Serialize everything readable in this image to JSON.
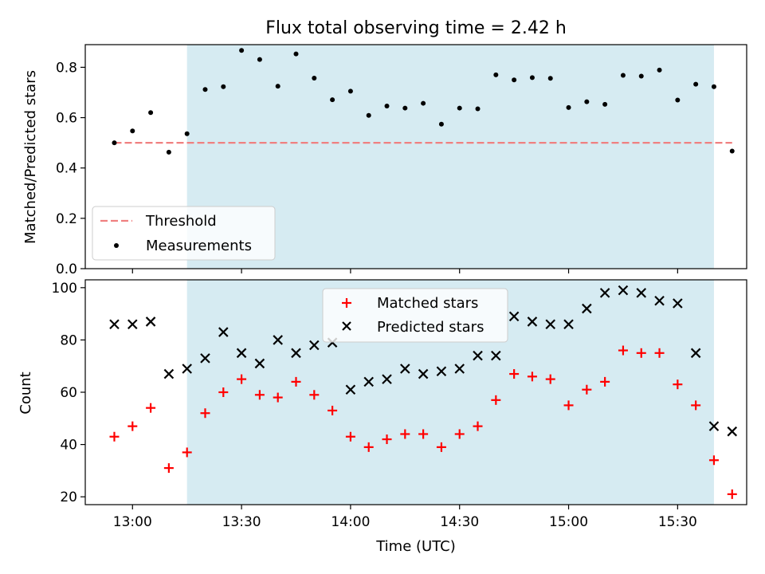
{
  "chart_data": [
    {
      "type": "scatter",
      "title": "Flux total observing time = 2.42 h",
      "ylabel": "Matched/Predicted stars",
      "xlabel": "",
      "ylim": [
        0,
        0.89
      ],
      "yticks": [
        0.0,
        0.2,
        0.4,
        0.6,
        0.8
      ],
      "ytick_labels": [
        "0.0",
        "0.2",
        "0.4",
        "0.6",
        "0.8"
      ],
      "threshold": {
        "name": "Threshold",
        "value": 0.5,
        "x_start": "12:55",
        "x_end": "15:45",
        "color": "#f08080"
      },
      "series": [
        {
          "name": "Measurements",
          "marker": "dot",
          "color": "#000000",
          "x": [
            "12:55",
            "13:00",
            "13:05",
            "13:10",
            "13:15",
            "13:20",
            "13:25",
            "13:30",
            "13:35",
            "13:40",
            "13:45",
            "13:50",
            "13:55",
            "14:00",
            "14:05",
            "14:10",
            "14:15",
            "14:20",
            "14:25",
            "14:30",
            "14:35",
            "14:40",
            "14:45",
            "14:50",
            "14:55",
            "15:00",
            "15:05",
            "15:10",
            "15:15",
            "15:20",
            "15:25",
            "15:30",
            "15:35",
            "15:40",
            "15:45"
          ],
          "y": [
            0.5,
            0.547,
            0.62,
            0.463,
            0.536,
            0.712,
            0.723,
            0.867,
            0.831,
            0.725,
            0.853,
            0.757,
            0.671,
            0.705,
            0.609,
            0.646,
            0.638,
            0.657,
            0.574,
            0.638,
            0.635,
            0.77,
            0.75,
            0.759,
            0.756,
            0.64,
            0.663,
            0.653,
            0.768,
            0.765,
            0.789,
            0.67,
            0.733,
            0.723,
            0.467
          ]
        }
      ],
      "legend": {
        "placement": "lower-left"
      }
    },
    {
      "type": "scatter",
      "xlabel": "Time (UTC)",
      "ylabel": "Count",
      "ylim": [
        17,
        103
      ],
      "yticks": [
        20,
        40,
        60,
        80,
        100
      ],
      "ytick_labels": [
        "20",
        "40",
        "60",
        "80",
        "100"
      ],
      "xticks": [
        "13:00",
        "13:30",
        "14:00",
        "14:30",
        "15:00",
        "15:30"
      ],
      "xtick_labels": [
        "13:00",
        "13:30",
        "14:00",
        "14:30",
        "15:00",
        "15:30"
      ],
      "x_range": [
        "12:47",
        "15:49"
      ],
      "series": [
        {
          "name": "Matched stars",
          "marker": "plus",
          "color": "#ff0000",
          "x": [
            "12:55",
            "13:00",
            "13:05",
            "13:10",
            "13:15",
            "13:20",
            "13:25",
            "13:30",
            "13:35",
            "13:40",
            "13:45",
            "13:50",
            "13:55",
            "14:00",
            "14:05",
            "14:10",
            "14:15",
            "14:20",
            "14:25",
            "14:30",
            "14:35",
            "14:40",
            "14:45",
            "14:50",
            "14:55",
            "15:00",
            "15:05",
            "15:10",
            "15:15",
            "15:20",
            "15:25",
            "15:30",
            "15:35",
            "15:40",
            "15:45"
          ],
          "y": [
            43,
            47,
            54,
            31,
            37,
            52,
            60,
            65,
            59,
            58,
            64,
            59,
            53,
            43,
            39,
            42,
            44,
            44,
            39,
            44,
            47,
            57,
            67,
            66,
            65,
            55,
            61,
            64,
            76,
            75,
            75,
            63,
            55,
            34,
            21
          ]
        },
        {
          "name": "Predicted stars",
          "marker": "x",
          "color": "#000000",
          "x": [
            "12:55",
            "13:00",
            "13:05",
            "13:10",
            "13:15",
            "13:20",
            "13:25",
            "13:30",
            "13:35",
            "13:40",
            "13:45",
            "13:50",
            "13:55",
            "14:00",
            "14:05",
            "14:10",
            "14:15",
            "14:20",
            "14:25",
            "14:30",
            "14:35",
            "14:40",
            "14:45",
            "14:50",
            "14:55",
            "15:00",
            "15:05",
            "15:10",
            "15:15",
            "15:20",
            "15:25",
            "15:30",
            "15:35",
            "15:40",
            "15:45"
          ],
          "y": [
            86,
            86,
            87,
            67,
            69,
            73,
            83,
            75,
            71,
            80,
            75,
            78,
            79,
            61,
            64,
            65,
            69,
            67,
            68,
            69,
            74,
            74,
            89,
            87,
            86,
            86,
            92,
            98,
            99,
            98,
            95,
            94,
            75,
            47,
            45
          ]
        }
      ],
      "legend": {
        "placement": "upper-center"
      }
    }
  ],
  "shared": {
    "shaded_interval": {
      "start": "13:15",
      "end": "15:40",
      "color": "#add8e6"
    },
    "x_range": [
      "12:47",
      "15:49"
    ]
  }
}
